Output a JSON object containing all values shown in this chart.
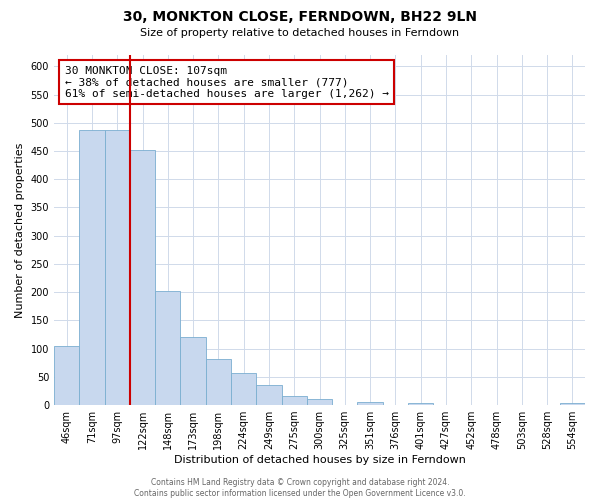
{
  "title": "30, MONKTON CLOSE, FERNDOWN, BH22 9LN",
  "subtitle": "Size of property relative to detached houses in Ferndown",
  "xlabel": "Distribution of detached houses by size in Ferndown",
  "ylabel": "Number of detached properties",
  "bin_labels": [
    "46sqm",
    "71sqm",
    "97sqm",
    "122sqm",
    "148sqm",
    "173sqm",
    "198sqm",
    "224sqm",
    "249sqm",
    "275sqm",
    "300sqm",
    "325sqm",
    "351sqm",
    "376sqm",
    "401sqm",
    "427sqm",
    "452sqm",
    "478sqm",
    "503sqm",
    "528sqm",
    "554sqm"
  ],
  "bar_heights": [
    105,
    487,
    487,
    452,
    202,
    121,
    82,
    57,
    36,
    16,
    10,
    0,
    5,
    0,
    3,
    0,
    0,
    0,
    0,
    0,
    4
  ],
  "bar_color": "#c8d8ee",
  "bar_edge_color": "#7aaed0",
  "vline_color": "#cc0000",
  "annotation_text": "30 MONKTON CLOSE: 107sqm\n← 38% of detached houses are smaller (777)\n61% of semi-detached houses are larger (1,262) →",
  "annotation_box_color": "#ffffff",
  "annotation_box_edgecolor": "#cc0000",
  "ylim": [
    0,
    620
  ],
  "yticks": [
    0,
    50,
    100,
    150,
    200,
    250,
    300,
    350,
    400,
    450,
    500,
    550,
    600
  ],
  "footer_text": "Contains HM Land Registry data © Crown copyright and database right 2024.\nContains public sector information licensed under the Open Government Licence v3.0.",
  "background_color": "#ffffff",
  "grid_color": "#d0daea",
  "title_fontsize": 10,
  "subtitle_fontsize": 8,
  "ylabel_fontsize": 8,
  "xlabel_fontsize": 8,
  "tick_fontsize": 7,
  "annotation_fontsize": 8,
  "footer_fontsize": 5.5
}
